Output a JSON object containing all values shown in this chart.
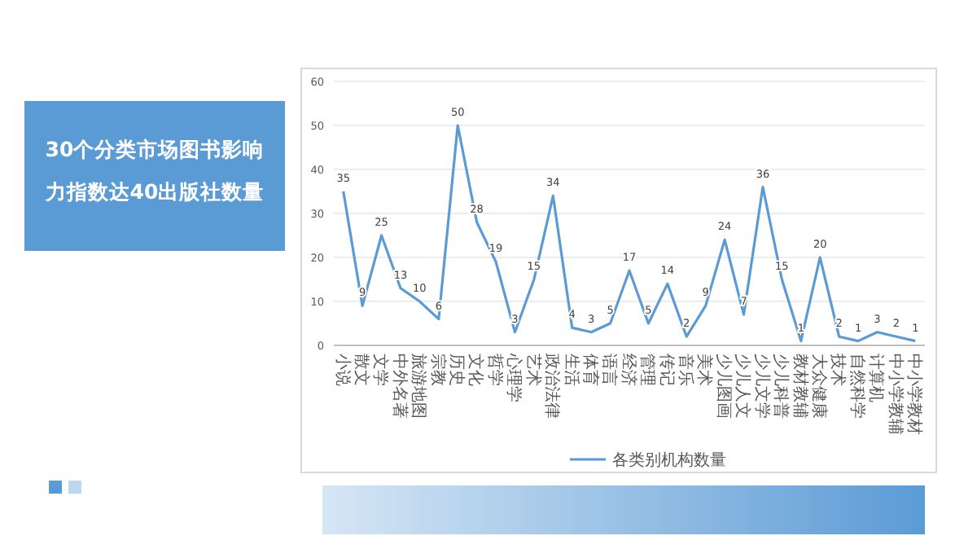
{
  "chart_data": {
    "type": "line",
    "title": "30个分类市场图书影响力指数达40出版社数量",
    "categories": [
      "小说",
      "散文",
      "文学",
      "中外名著",
      "旅游地图",
      "宗教",
      "历史",
      "文化",
      "哲学",
      "心理学",
      "艺术",
      "政治法律",
      "生活",
      "体育",
      "语言",
      "经济",
      "管理",
      "传记",
      "音乐",
      "美术",
      "少儿图画",
      "少儿人文",
      "少儿文学",
      "少儿科普",
      "教材教辅",
      "大众健康",
      "技术",
      "自然科学",
      "计算机",
      "中小学教辅",
      "中小学教材"
    ],
    "series": [
      {
        "name": "各类别机构数量",
        "color": "#5b9bd5",
        "values": [
          35,
          9,
          25,
          13,
          10,
          6,
          50,
          28,
          19,
          3,
          15,
          34,
          4,
          3,
          5,
          17,
          5,
          14,
          2,
          9,
          24,
          7,
          36,
          15,
          1,
          20,
          2,
          1,
          3,
          2,
          1
        ]
      }
    ],
    "ylim": [
      0,
      60
    ],
    "yticks": [
      0,
      10,
      20,
      30,
      40,
      50,
      60
    ],
    "grid": "y",
    "legend": "bottom",
    "data_labels": true,
    "marker": "none",
    "line_style": "solid"
  }
}
